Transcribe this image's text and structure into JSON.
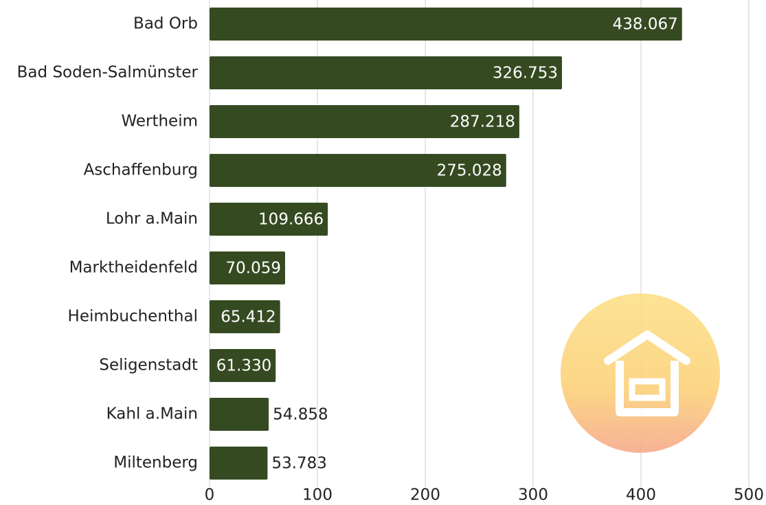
{
  "chart_data": {
    "type": "bar",
    "orientation": "horizontal",
    "categories": [
      "Bad Orb",
      "Bad Soden-Salmünster",
      "Wertheim",
      "Aschaffenburg",
      "Lohr a.Main",
      "Marktheidenfeld",
      "Heimbuchenthal",
      "Seligenstadt",
      "Kahl a.Main",
      "Miltenberg"
    ],
    "values": [
      438.067,
      326.753,
      287.218,
      275.028,
      109.666,
      70.059,
      65.412,
      61.33,
      54.858,
      53.783
    ],
    "value_labels": [
      "438.067",
      "326.753",
      "287.218",
      "275.028",
      "109.666",
      "70.059",
      "65.412",
      "61.330",
      "54.858",
      "53.783"
    ],
    "color": "#354a21",
    "xlim": [
      0,
      500
    ],
    "xticks": [
      0,
      100,
      200,
      300,
      400,
      500
    ],
    "grid": true
  }
}
